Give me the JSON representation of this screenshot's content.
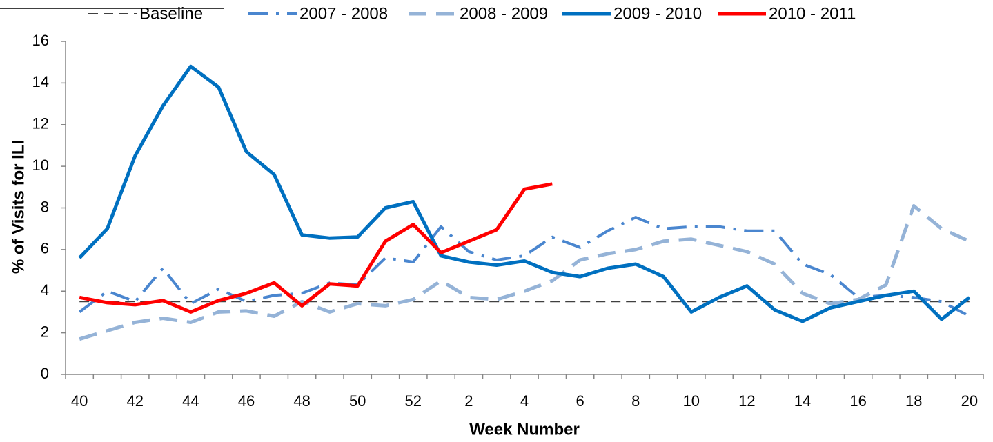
{
  "chart_data": {
    "type": "line",
    "x_label": "Week Number",
    "y_label": "% of Visits for ILI",
    "categories": [
      "40",
      null,
      "42",
      null,
      "44",
      null,
      "46",
      null,
      "48",
      null,
      "50",
      null,
      "52",
      null,
      "2",
      null,
      "4",
      null,
      "6",
      null,
      "8",
      null,
      "10",
      null,
      "12",
      null,
      "14",
      null,
      "16",
      null,
      "18",
      null,
      "20"
    ],
    "ylim": [
      0,
      16
    ],
    "yticks": [
      0,
      2,
      4,
      6,
      8,
      10,
      12,
      14,
      16
    ],
    "grid": false,
    "legend": "top",
    "series": [
      {
        "name": "Baseline",
        "color": "#404040",
        "style": "dashed-thin",
        "values": [
          3.5,
          3.5,
          3.5,
          3.5,
          3.5,
          3.5,
          3.5,
          3.5,
          3.5,
          3.5,
          3.5,
          3.5,
          3.5,
          3.5,
          3.5,
          3.5,
          3.5,
          3.5,
          3.5,
          3.5,
          3.5,
          3.5,
          3.5,
          3.5,
          3.5,
          3.5,
          3.5,
          3.5,
          3.5,
          3.5,
          3.5,
          3.5,
          3.5
        ]
      },
      {
        "name": "2007 - 2008",
        "color": "#4a86cf",
        "style": "dashdot",
        "values": [
          3.0,
          4.0,
          3.5,
          5.1,
          3.4,
          4.1,
          3.5,
          3.8,
          3.9,
          4.4,
          4.3,
          5.6,
          5.4,
          7.1,
          5.9,
          5.5,
          5.7,
          6.6,
          6.1,
          6.9,
          7.55,
          7.0,
          7.1,
          7.1,
          6.9,
          6.9,
          5.3,
          4.8,
          3.7,
          3.8,
          3.7,
          3.5,
          2.8
        ]
      },
      {
        "name": "2008 - 2009",
        "color": "#95b3d7",
        "style": "dashed",
        "values": [
          1.7,
          2.1,
          2.5,
          2.7,
          2.5,
          3.0,
          3.05,
          2.8,
          3.5,
          3.0,
          3.4,
          3.3,
          3.6,
          4.5,
          3.7,
          3.6,
          4.0,
          4.5,
          5.5,
          5.8,
          6.0,
          6.4,
          6.5,
          6.2,
          5.9,
          5.3,
          3.9,
          3.4,
          3.6,
          4.3,
          8.1,
          7.0,
          6.4
        ]
      },
      {
        "name": "2009 - 2010",
        "color": "#0070c0",
        "style": "solid",
        "values": [
          5.6,
          7.0,
          10.5,
          12.9,
          14.8,
          13.8,
          10.7,
          9.6,
          6.7,
          6.55,
          6.6,
          8.0,
          8.3,
          5.7,
          5.4,
          5.25,
          5.45,
          4.9,
          4.7,
          5.1,
          5.3,
          4.7,
          3.0,
          3.7,
          4.25,
          3.1,
          2.55,
          3.2,
          3.5,
          3.8,
          4.0,
          2.65,
          3.7
        ]
      },
      {
        "name": "2010 - 2011",
        "color": "#ff0000",
        "style": "solid",
        "values": [
          3.7,
          3.45,
          3.35,
          3.55,
          3.0,
          3.55,
          3.9,
          4.4,
          3.3,
          4.35,
          4.25,
          6.4,
          7.2,
          5.85,
          6.4,
          6.95,
          8.9,
          9.15,
          null,
          null,
          null,
          null,
          null,
          null,
          null,
          null,
          null,
          null,
          null,
          null,
          null,
          null,
          null
        ]
      }
    ]
  }
}
